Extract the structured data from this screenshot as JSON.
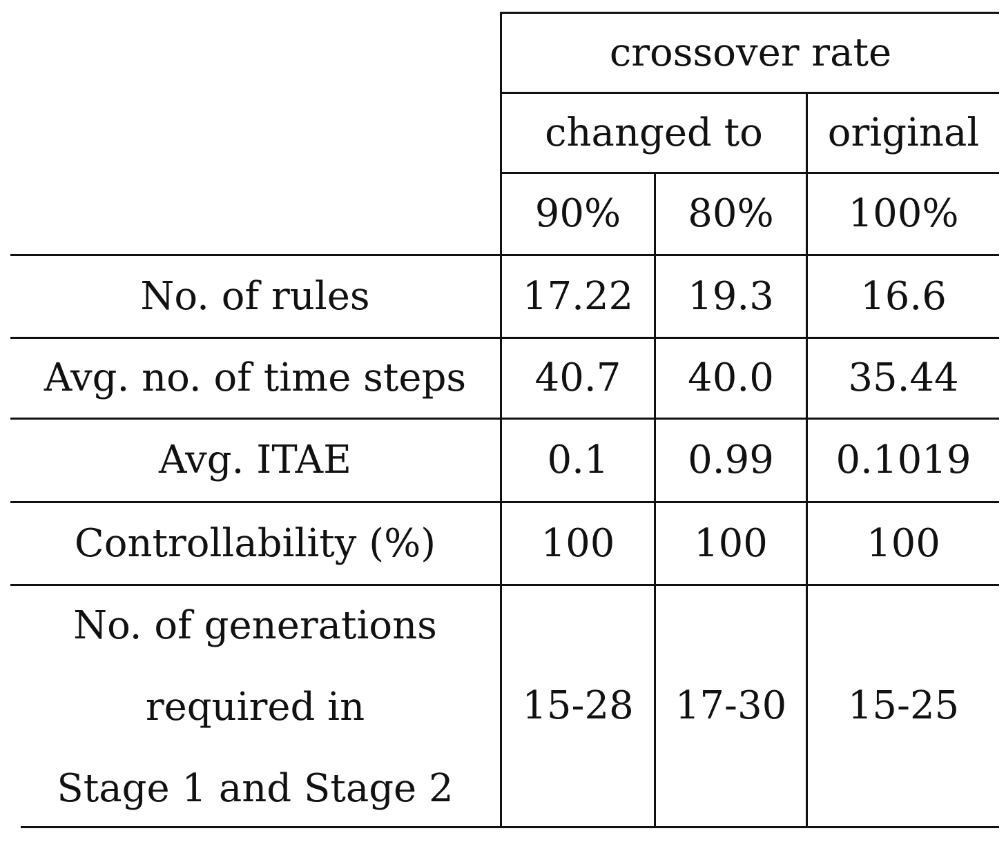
{
  "table": {
    "group_header": "crossover rate",
    "sub_headers": {
      "changed": "changed to",
      "original": "original"
    },
    "rate_headers": [
      "90%",
      "80%",
      "100%"
    ],
    "rows": [
      {
        "label": "No. of rules",
        "values": [
          "17.22",
          "19.3",
          "16.6"
        ]
      },
      {
        "label": "Avg. no. of time steps",
        "values": [
          "40.7",
          "40.0",
          "35.44"
        ]
      },
      {
        "label": "Avg. ITAE",
        "values": [
          "0.1",
          "0.99",
          "0.1019"
        ]
      },
      {
        "label": "Controllability (%)",
        "values": [
          "100",
          "100",
          "100"
        ]
      },
      {
        "label_lines": [
          "No. of generations",
          "required in",
          "Stage 1 and Stage 2"
        ],
        "values": [
          "15-28",
          "17-30",
          "15-25"
        ]
      }
    ]
  }
}
